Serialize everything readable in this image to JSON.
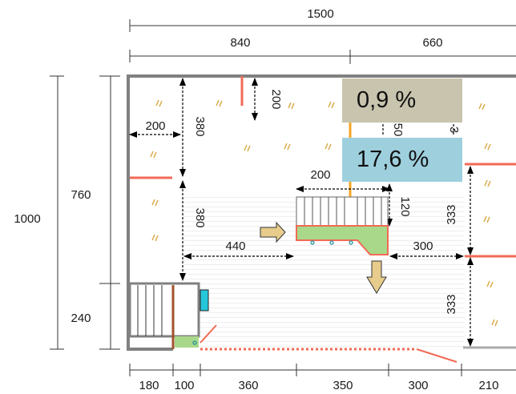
{
  "dimensions": {
    "total_width": "1500",
    "left_section": "840",
    "right_section": "660",
    "total_height": "1000",
    "upper_height": "760",
    "lower_height": "240",
    "bottom": [
      "180",
      "100",
      "360",
      "350",
      "300",
      "210"
    ],
    "wall_gap_top": "200",
    "left_offset": "200",
    "left_depth_top": "380",
    "left_depth_mid": "380",
    "floor_span": "440",
    "stair_width": "200",
    "stair_depth": "120",
    "right_gap": "300",
    "right_upper": "333",
    "right_lower": "333",
    "partial": "50",
    "partial_right": "3"
  },
  "badges": {
    "upper": {
      "text": "0,9 %",
      "color": "#c8c4ae"
    },
    "lower": {
      "text": "17,6 %",
      "color": "#9ecfdd"
    }
  },
  "colors": {
    "wall": "#808080",
    "partition": "#f26a55",
    "stair_fill": "#a9d88a",
    "arrow_fill": "#e8cc8c",
    "hatch_mark": "#d8a640",
    "floor_pattern": "#dcdcdc",
    "orange_line": "#f5a623"
  }
}
